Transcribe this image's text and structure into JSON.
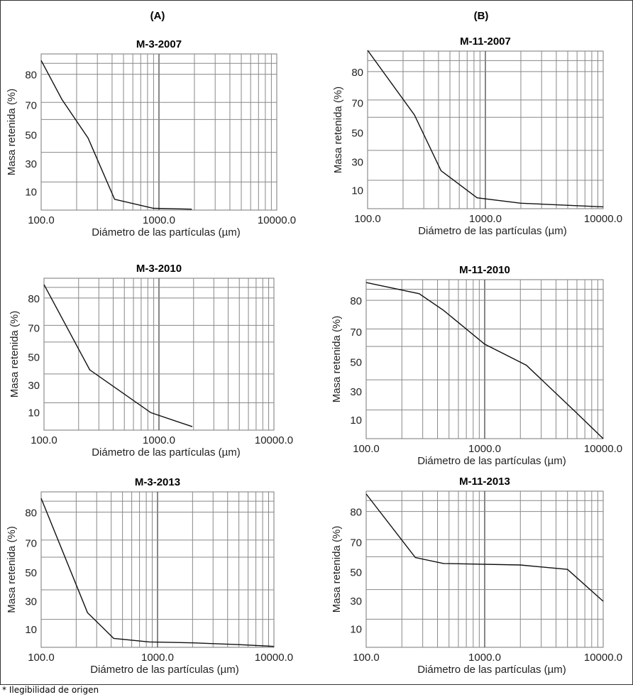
{
  "column_titles": [
    "(A)",
    "(B)"
  ],
  "footnote": "* Ilegibilidad de origen",
  "chart_data": [
    {
      "type": "line",
      "title": "M-3-2007",
      "xscale": "log",
      "xlabel": "Diámetro de las partículas (µm)",
      "ylabel": "Masa retenida (%)",
      "xlim": [
        100,
        10000
      ],
      "xticks": [
        {
          "value": 100,
          "label": "100.0"
        },
        {
          "value": 1000,
          "label": "1000.0"
        },
        {
          "value": 10000,
          "label": "10000.0"
        }
      ],
      "yticks": [
        10,
        30,
        50,
        70,
        80
      ],
      "x": [
        100,
        150,
        250,
        420,
        900,
        1900
      ],
      "y": [
        88,
        72,
        48,
        6,
        1,
        0.5
      ]
    },
    {
      "type": "line",
      "title": "M-11-2007",
      "xscale": "log",
      "xlabel": "Diámetro de las partículas (µm)",
      "ylabel": "Masa retenida (%)",
      "xlim": [
        100,
        10000
      ],
      "xticks": [
        {
          "value": 100,
          "label": "100.0"
        },
        {
          "value": 1000,
          "label": "1000.0"
        },
        {
          "value": 10000,
          "label": "10000.0"
        }
      ],
      "yticks": [
        10,
        30,
        50,
        70,
        80
      ],
      "x": [
        100,
        250,
        420,
        850,
        2000,
        10000
      ],
      "y": [
        92,
        62,
        24,
        6,
        3,
        1
      ]
    },
    {
      "type": "line",
      "title": "M-3-2010",
      "xscale": "log",
      "xlabel": "Diámetro de las partículas (µm)",
      "ylabel": "Masa retenida (%)",
      "xlim": [
        100,
        10000
      ],
      "xticks": [
        {
          "value": 100,
          "label": "100.0"
        },
        {
          "value": 1000,
          "label": "1000.0"
        },
        {
          "value": 10000,
          "label": "10000.0"
        }
      ],
      "yticks": [
        10,
        30,
        50,
        70,
        80
      ],
      "x": [
        100,
        250,
        420,
        850,
        1950
      ],
      "y": [
        88,
        41,
        28,
        10,
        2
      ]
    },
    {
      "type": "line",
      "title": "M-11-2010",
      "xscale": "log",
      "xlabel": "Diámetro de las partículas (µm)",
      "ylabel": "Masa retenida (%)",
      "xlim": [
        100,
        10000
      ],
      "xticks": [
        {
          "value": 100,
          "label": "100.0"
        },
        {
          "value": 1000,
          "label": "1000.0"
        },
        {
          "value": 10000,
          "label": "10000.0"
        }
      ],
      "yticks": [
        10,
        30,
        50,
        70,
        80
      ],
      "x": [
        100,
        280,
        450,
        1000,
        2250,
        6000,
        11000
      ],
      "y": [
        90,
        84,
        77,
        62,
        48,
        15,
        0
      ]
    },
    {
      "type": "line",
      "title": "M-3-2013",
      "xscale": "log",
      "xlabel": "Diámetro de las partículas (µm)",
      "ylabel": "Masa retenida (%)",
      "xlim": [
        100,
        10000
      ],
      "xticks": [
        {
          "value": 100,
          "label": "100.0"
        },
        {
          "value": 1000,
          "label": "1000.0"
        },
        {
          "value": 10000,
          "label": "10000.0"
        }
      ],
      "yticks": [
        10,
        30,
        50,
        70,
        80
      ],
      "x": [
        100,
        250,
        420,
        850,
        2000,
        5000,
        10000
      ],
      "y": [
        88,
        22,
        5,
        3,
        2.5,
        1.5,
        0.5
      ]
    },
    {
      "type": "line",
      "title": "M-11-2013",
      "xscale": "log",
      "xlabel": "Diámetro de las partículas (µm)",
      "ylabel": "Masa retenida (%)",
      "xlim": [
        100,
        10000
      ],
      "xticks": [
        {
          "value": 100,
          "label": "100.0"
        },
        {
          "value": 1000,
          "label": "1000.0"
        },
        {
          "value": 10000,
          "label": "10000.0"
        }
      ],
      "yticks": [
        10,
        30,
        50,
        70,
        80
      ],
      "x": [
        100,
        260,
        450,
        2000,
        5000,
        11000
      ],
      "y": [
        90,
        60,
        56,
        55,
        52,
        30
      ]
    }
  ]
}
